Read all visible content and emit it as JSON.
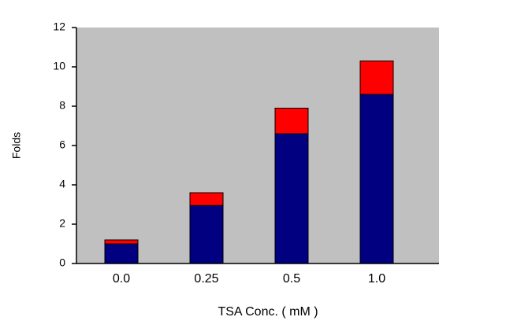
{
  "chart_data": {
    "type": "stacked_bar",
    "categories": [
      "0.0",
      "0.25",
      "0.5",
      "1.0"
    ],
    "series": [
      {
        "color": "#000080",
        "values": [
          1.0,
          2.95,
          6.6,
          8.6
        ]
      },
      {
        "color": "#ff0000",
        "values": [
          0.2,
          0.65,
          1.3,
          1.7
        ]
      }
    ],
    "ylim": [
      0,
      12
    ],
    "yticks": [
      0,
      2,
      4,
      6,
      8,
      10,
      12
    ],
    "ylabel": "Folds",
    "xlabel": "TSA Conc. ( mM )",
    "plot_background": "#c0c0c0"
  }
}
